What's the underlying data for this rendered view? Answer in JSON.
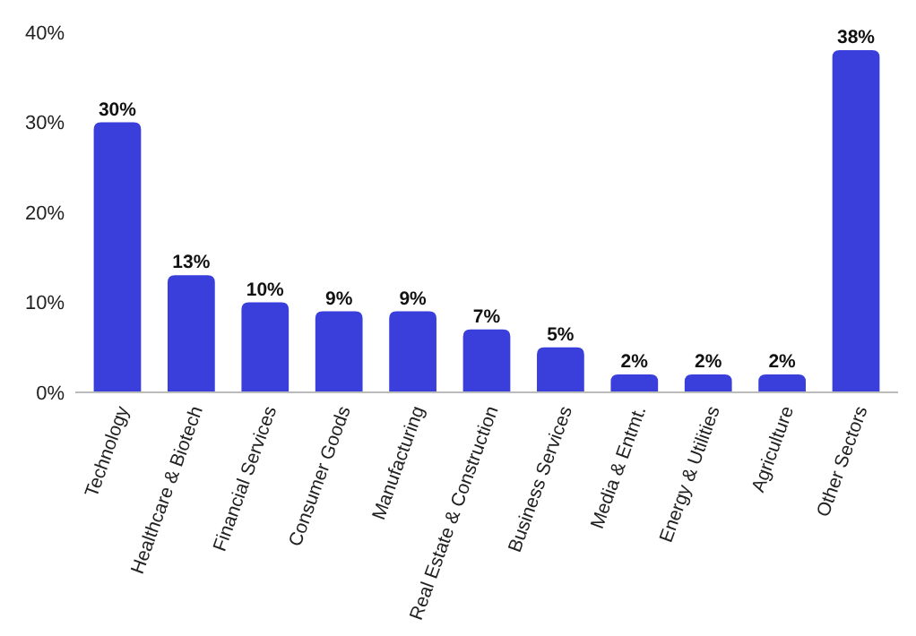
{
  "chart_data": {
    "type": "bar",
    "categories": [
      "Technology",
      "Healthcare & Biotech",
      "Financial Services",
      "Consumer Goods",
      "Manufacturing",
      "Real Estate & Construction",
      "Business Services",
      "Media & Entmt.",
      "Energy & Utilities",
      "Agriculture",
      "Other Sectors"
    ],
    "values": [
      30,
      13,
      10,
      9,
      9,
      7,
      5,
      2,
      2,
      2,
      38
    ],
    "value_labels": [
      "30%",
      "13%",
      "10%",
      "9%",
      "9%",
      "7%",
      "5%",
      "2%",
      "2%",
      "2%",
      "38%"
    ],
    "color": "#3a3fdb",
    "ylim": [
      0,
      40
    ],
    "yticks": [
      {
        "value": 0,
        "label": "0%"
      },
      {
        "value": 10,
        "label": "10%"
      },
      {
        "value": 20,
        "label": "20%"
      },
      {
        "value": 30,
        "label": "30%"
      },
      {
        "value": 40,
        "label": "40%"
      }
    ],
    "grid": false
  }
}
